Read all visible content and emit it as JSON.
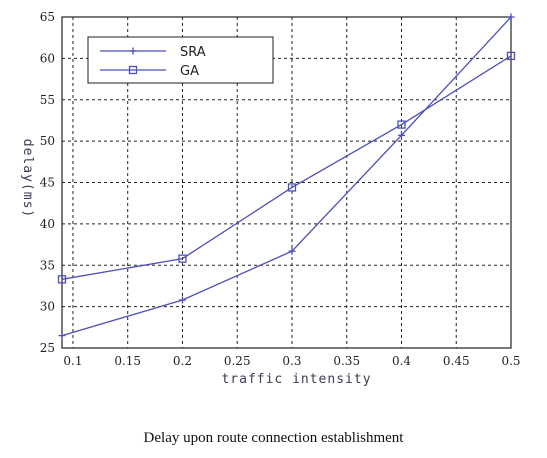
{
  "caption": "Delay upon route connection establishment",
  "chart_data": {
    "type": "line",
    "title": "",
    "xlabel": "traffic intensity",
    "ylabel": "delay(ms)",
    "xlim": [
      0.09,
      0.5
    ],
    "ylim": [
      25,
      65
    ],
    "x_ticks": [
      0.1,
      0.15,
      0.2,
      0.25,
      0.3,
      0.35,
      0.4,
      0.45,
      0.5
    ],
    "x_tick_labels": [
      "0.1",
      "0.15",
      "0.2",
      "0.25",
      "0.3",
      "0.35",
      "0.4",
      "0.45",
      "0.5"
    ],
    "y_ticks": [
      25,
      30,
      35,
      40,
      45,
      50,
      55,
      60,
      65
    ],
    "y_tick_labels": [
      "25",
      "30",
      "35",
      "40",
      "45",
      "50",
      "55",
      "60",
      "65"
    ],
    "grid": true,
    "legend_position": "top-left",
    "series": [
      {
        "name": "SRA",
        "marker": "plus",
        "color": "#4b4fb8",
        "x": [
          0.09,
          0.2,
          0.3,
          0.4,
          0.5
        ],
        "y": [
          26.5,
          30.8,
          36.7,
          50.7,
          65.0
        ]
      },
      {
        "name": "GA",
        "marker": "square",
        "color": "#4b4fb8",
        "x": [
          0.09,
          0.2,
          0.3,
          0.4,
          0.5
        ],
        "y": [
          33.3,
          35.8,
          44.4,
          52.0,
          60.3
        ]
      }
    ]
  }
}
